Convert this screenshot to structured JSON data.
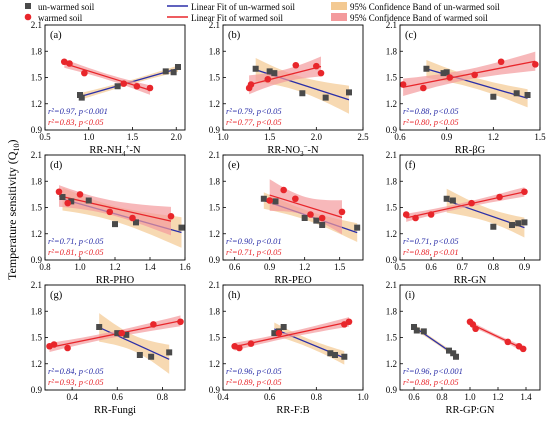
{
  "legend": {
    "unwarmed": "un-warmed soil",
    "warmed": "warmed soil",
    "fit_unwarmed": "Linear Fit of un-warmed soil",
    "fit_warmed": "Linear Fit of warmed soil",
    "band_unwarmed": "95% Confidence Band of un-warmed soil",
    "band_warmed": "95% Confidence Band of warmed soil"
  },
  "colors": {
    "unwarmed": "#4a4a4a",
    "warmed": "#e8262b",
    "fit_unwarmed": "#2b2fa8",
    "fit_warmed": "#e8262b",
    "band_unwarmed": "#f3c992",
    "band_warmed": "#f39a9c",
    "stat_unwarmed": "#2b2fa8",
    "stat_warmed": "#e8262b"
  },
  "ylabel": "Temperature sensitivity (Q10)",
  "chart_data": [
    {
      "type": "scatter",
      "label": "(a)",
      "xlabel": "RR-NH4+-N",
      "xlim": [
        0.5,
        2.1
      ],
      "ylim": [
        0.9,
        2.1
      ],
      "xticks": [
        0.5,
        1.0,
        1.5,
        2.0
      ],
      "xticklabels": [
        "0.5",
        "1.0",
        "1.5",
        "2.0"
      ],
      "unwarmed": {
        "x": [
          0.9,
          0.92,
          1.33,
          1.88,
          1.97,
          2.02
        ],
        "y": [
          1.3,
          1.27,
          1.4,
          1.57,
          1.56,
          1.62
        ],
        "stats": {
          "r2": "r²=0.97,",
          "p": "p<0.001"
        }
      },
      "warmed": {
        "x": [
          0.72,
          0.78,
          0.95,
          1.4,
          1.55,
          1.7
        ],
        "y": [
          1.68,
          1.66,
          1.55,
          1.43,
          1.4,
          1.38
        ],
        "stats": {
          "r2": "r²=0.83,",
          "p": "p<0.05"
        }
      }
    },
    {
      "type": "scatter",
      "label": "(b)",
      "xlabel": "RR-NO3−-N",
      "xlim": [
        1.0,
        2.5
      ],
      "ylim": [
        0.9,
        2.1
      ],
      "xticks": [
        1.0,
        1.5,
        2.0,
        2.5
      ],
      "xticklabels": [
        "1.0",
        "1.5",
        "2.0",
        "2.5"
      ],
      "unwarmed": {
        "x": [
          1.35,
          1.5,
          1.55,
          1.85,
          2.1,
          2.35
        ],
        "y": [
          1.6,
          1.57,
          1.55,
          1.32,
          1.27,
          1.33
        ],
        "stats": {
          "r2": "r²=0.79,",
          "p": "p<0.05"
        }
      },
      "warmed": {
        "x": [
          1.28,
          1.3,
          1.48,
          1.78,
          2.0,
          2.05
        ],
        "y": [
          1.38,
          1.42,
          1.48,
          1.64,
          1.63,
          1.55
        ],
        "stats": {
          "r2": "r²=0.77,",
          "p": "p<0.05"
        }
      }
    },
    {
      "type": "scatter",
      "label": "(c)",
      "xlabel": "RR-βG",
      "xlim": [
        0.6,
        1.5
      ],
      "ylim": [
        0.9,
        2.1
      ],
      "xticks": [
        0.6,
        0.9,
        1.2,
        1.5
      ],
      "xticklabels": [
        "0.6",
        "0.9",
        "1.2",
        "1.5"
      ],
      "unwarmed": {
        "x": [
          0.77,
          0.88,
          0.9,
          1.2,
          1.35,
          1.42
        ],
        "y": [
          1.6,
          1.55,
          1.56,
          1.28,
          1.32,
          1.3
        ],
        "stats": {
          "r2": "r²=0.88,",
          "p": "p<0.05"
        }
      },
      "warmed": {
        "x": [
          0.62,
          0.75,
          0.92,
          1.08,
          1.25,
          1.47
        ],
        "y": [
          1.42,
          1.38,
          1.5,
          1.53,
          1.68,
          1.65
        ],
        "stats": {
          "r2": "r²=0.80,",
          "p": "p<0.05"
        }
      }
    },
    {
      "type": "scatter",
      "label": "(d)",
      "xlabel": "RR-PHO",
      "xlim": [
        0.8,
        1.6
      ],
      "ylim": [
        0.9,
        2.1
      ],
      "xticks": [
        0.8,
        1.0,
        1.2,
        1.4,
        1.6
      ],
      "xticklabels": [
        "0.8",
        "1.0",
        "1.2",
        "1.4",
        "1.6"
      ],
      "unwarmed": {
        "x": [
          0.9,
          0.95,
          1.05,
          1.2,
          1.32,
          1.58
        ],
        "y": [
          1.62,
          1.57,
          1.58,
          1.31,
          1.33,
          1.27
        ],
        "stats": {
          "r2": "r²=0.71,",
          "p": "p<0.05"
        }
      },
      "warmed": {
        "x": [
          0.88,
          0.93,
          1.0,
          1.17,
          1.3,
          1.52
        ],
        "y": [
          1.68,
          1.55,
          1.65,
          1.45,
          1.38,
          1.4
        ],
        "stats": {
          "r2": "r²=0.81,",
          "p": "p<0.05"
        }
      }
    },
    {
      "type": "scatter",
      "label": "(e)",
      "xlabel": "RR-PEO",
      "xlim": [
        0.5,
        1.7
      ],
      "ylim": [
        0.9,
        2.1
      ],
      "xticks": [
        0.6,
        0.9,
        1.2,
        1.5
      ],
      "xticklabels": [
        "0.6",
        "0.9",
        "1.2",
        "1.5"
      ],
      "unwarmed": {
        "x": [
          0.85,
          0.95,
          1.2,
          1.3,
          1.35,
          1.65
        ],
        "y": [
          1.6,
          1.57,
          1.38,
          1.35,
          1.3,
          1.27
        ],
        "stats": {
          "r2": "r²=0.90,",
          "p": "p<0.01"
        }
      },
      "warmed": {
        "x": [
          0.9,
          1.02,
          1.12,
          1.25,
          1.35,
          1.52
        ],
        "y": [
          1.58,
          1.7,
          1.6,
          1.42,
          1.38,
          1.45
        ],
        "stats": {
          "r2": "r²=0.71,",
          "p": "p<0.05"
        }
      }
    },
    {
      "type": "scatter",
      "label": "(f)",
      "xlabel": "RR-GN",
      "xlim": [
        0.5,
        0.95
      ],
      "ylim": [
        0.9,
        2.1
      ],
      "xticks": [
        0.5,
        0.6,
        0.7,
        0.8,
        0.9
      ],
      "xticklabels": [
        "0.5",
        "0.6",
        "0.7",
        "0.8",
        "0.9"
      ],
      "unwarmed": {
        "x": [
          0.65,
          0.67,
          0.8,
          0.86,
          0.88,
          0.9
        ],
        "y": [
          1.6,
          1.58,
          1.28,
          1.3,
          1.32,
          1.33
        ],
        "stats": {
          "r2": "r²=0.71,",
          "p": "p<0.05"
        }
      },
      "warmed": {
        "x": [
          0.52,
          0.55,
          0.6,
          0.73,
          0.82,
          0.9
        ],
        "y": [
          1.42,
          1.38,
          1.42,
          1.55,
          1.62,
          1.68
        ],
        "stats": {
          "r2": "r²=0.88,",
          "p": "p<0.01"
        }
      }
    },
    {
      "type": "scatter",
      "label": "(g)",
      "xlabel": "RR-Fungi",
      "xlim": [
        0.28,
        0.9
      ],
      "ylim": [
        0.9,
        2.1
      ],
      "xticks": [
        0.4,
        0.6,
        0.8
      ],
      "xticklabels": [
        "0.4",
        "0.6",
        "0.8"
      ],
      "unwarmed": {
        "x": [
          0.52,
          0.6,
          0.64,
          0.7,
          0.75,
          0.83
        ],
        "y": [
          1.62,
          1.55,
          1.53,
          1.3,
          1.28,
          1.33
        ],
        "stats": {
          "r2": "r²=0.84,",
          "p": "p<0.05"
        }
      },
      "warmed": {
        "x": [
          0.3,
          0.32,
          0.38,
          0.62,
          0.76,
          0.88
        ],
        "y": [
          1.4,
          1.42,
          1.38,
          1.55,
          1.65,
          1.68
        ],
        "stats": {
          "r2": "r²=0.93,",
          "p": "p<0.05"
        }
      }
    },
    {
      "type": "scatter",
      "label": "(h)",
      "xlabel": "RR-F:B",
      "xlim": [
        0.4,
        1.0
      ],
      "ylim": [
        0.9,
        2.1
      ],
      "xticks": [
        0.4,
        0.6,
        0.8,
        1.0
      ],
      "xticklabels": [
        "0.4",
        "0.6",
        "0.8",
        "1.0"
      ],
      "unwarmed": {
        "x": [
          0.62,
          0.64,
          0.66,
          0.86,
          0.88,
          0.92
        ],
        "y": [
          1.55,
          1.57,
          1.62,
          1.32,
          1.3,
          1.28
        ],
        "stats": {
          "r2": "r²=0.96,",
          "p": "p<0.05"
        }
      },
      "warmed": {
        "x": [
          0.45,
          0.47,
          0.52,
          0.64,
          0.92,
          0.94
        ],
        "y": [
          1.4,
          1.38,
          1.43,
          1.55,
          1.65,
          1.68
        ],
        "stats": {
          "r2": "r²=0.89,",
          "p": "p<0.05"
        }
      }
    },
    {
      "type": "scatter",
      "label": "(i)",
      "xlabel": "RR-GP:GN",
      "xlim": [
        0.5,
        1.5
      ],
      "ylim": [
        0.9,
        2.1
      ],
      "xticks": [
        0.6,
        0.8,
        1.0,
        1.2,
        1.4
      ],
      "xticklabels": [
        "0.6",
        "0.8",
        "1.0",
        "1.2",
        "1.4"
      ],
      "unwarmed": {
        "x": [
          0.6,
          0.62,
          0.67,
          0.85,
          0.88,
          0.9
        ],
        "y": [
          1.62,
          1.58,
          1.57,
          1.35,
          1.32,
          1.28
        ],
        "stats": {
          "r2": "r²=0.96,",
          "p": "p<0.001"
        }
      },
      "warmed": {
        "x": [
          1.0,
          1.02,
          1.04,
          1.27,
          1.35,
          1.38
        ],
        "y": [
          1.68,
          1.65,
          1.6,
          1.45,
          1.4,
          1.37
        ],
        "stats": {
          "r2": "r²=0.88,",
          "p": "p<0.05"
        }
      }
    }
  ]
}
